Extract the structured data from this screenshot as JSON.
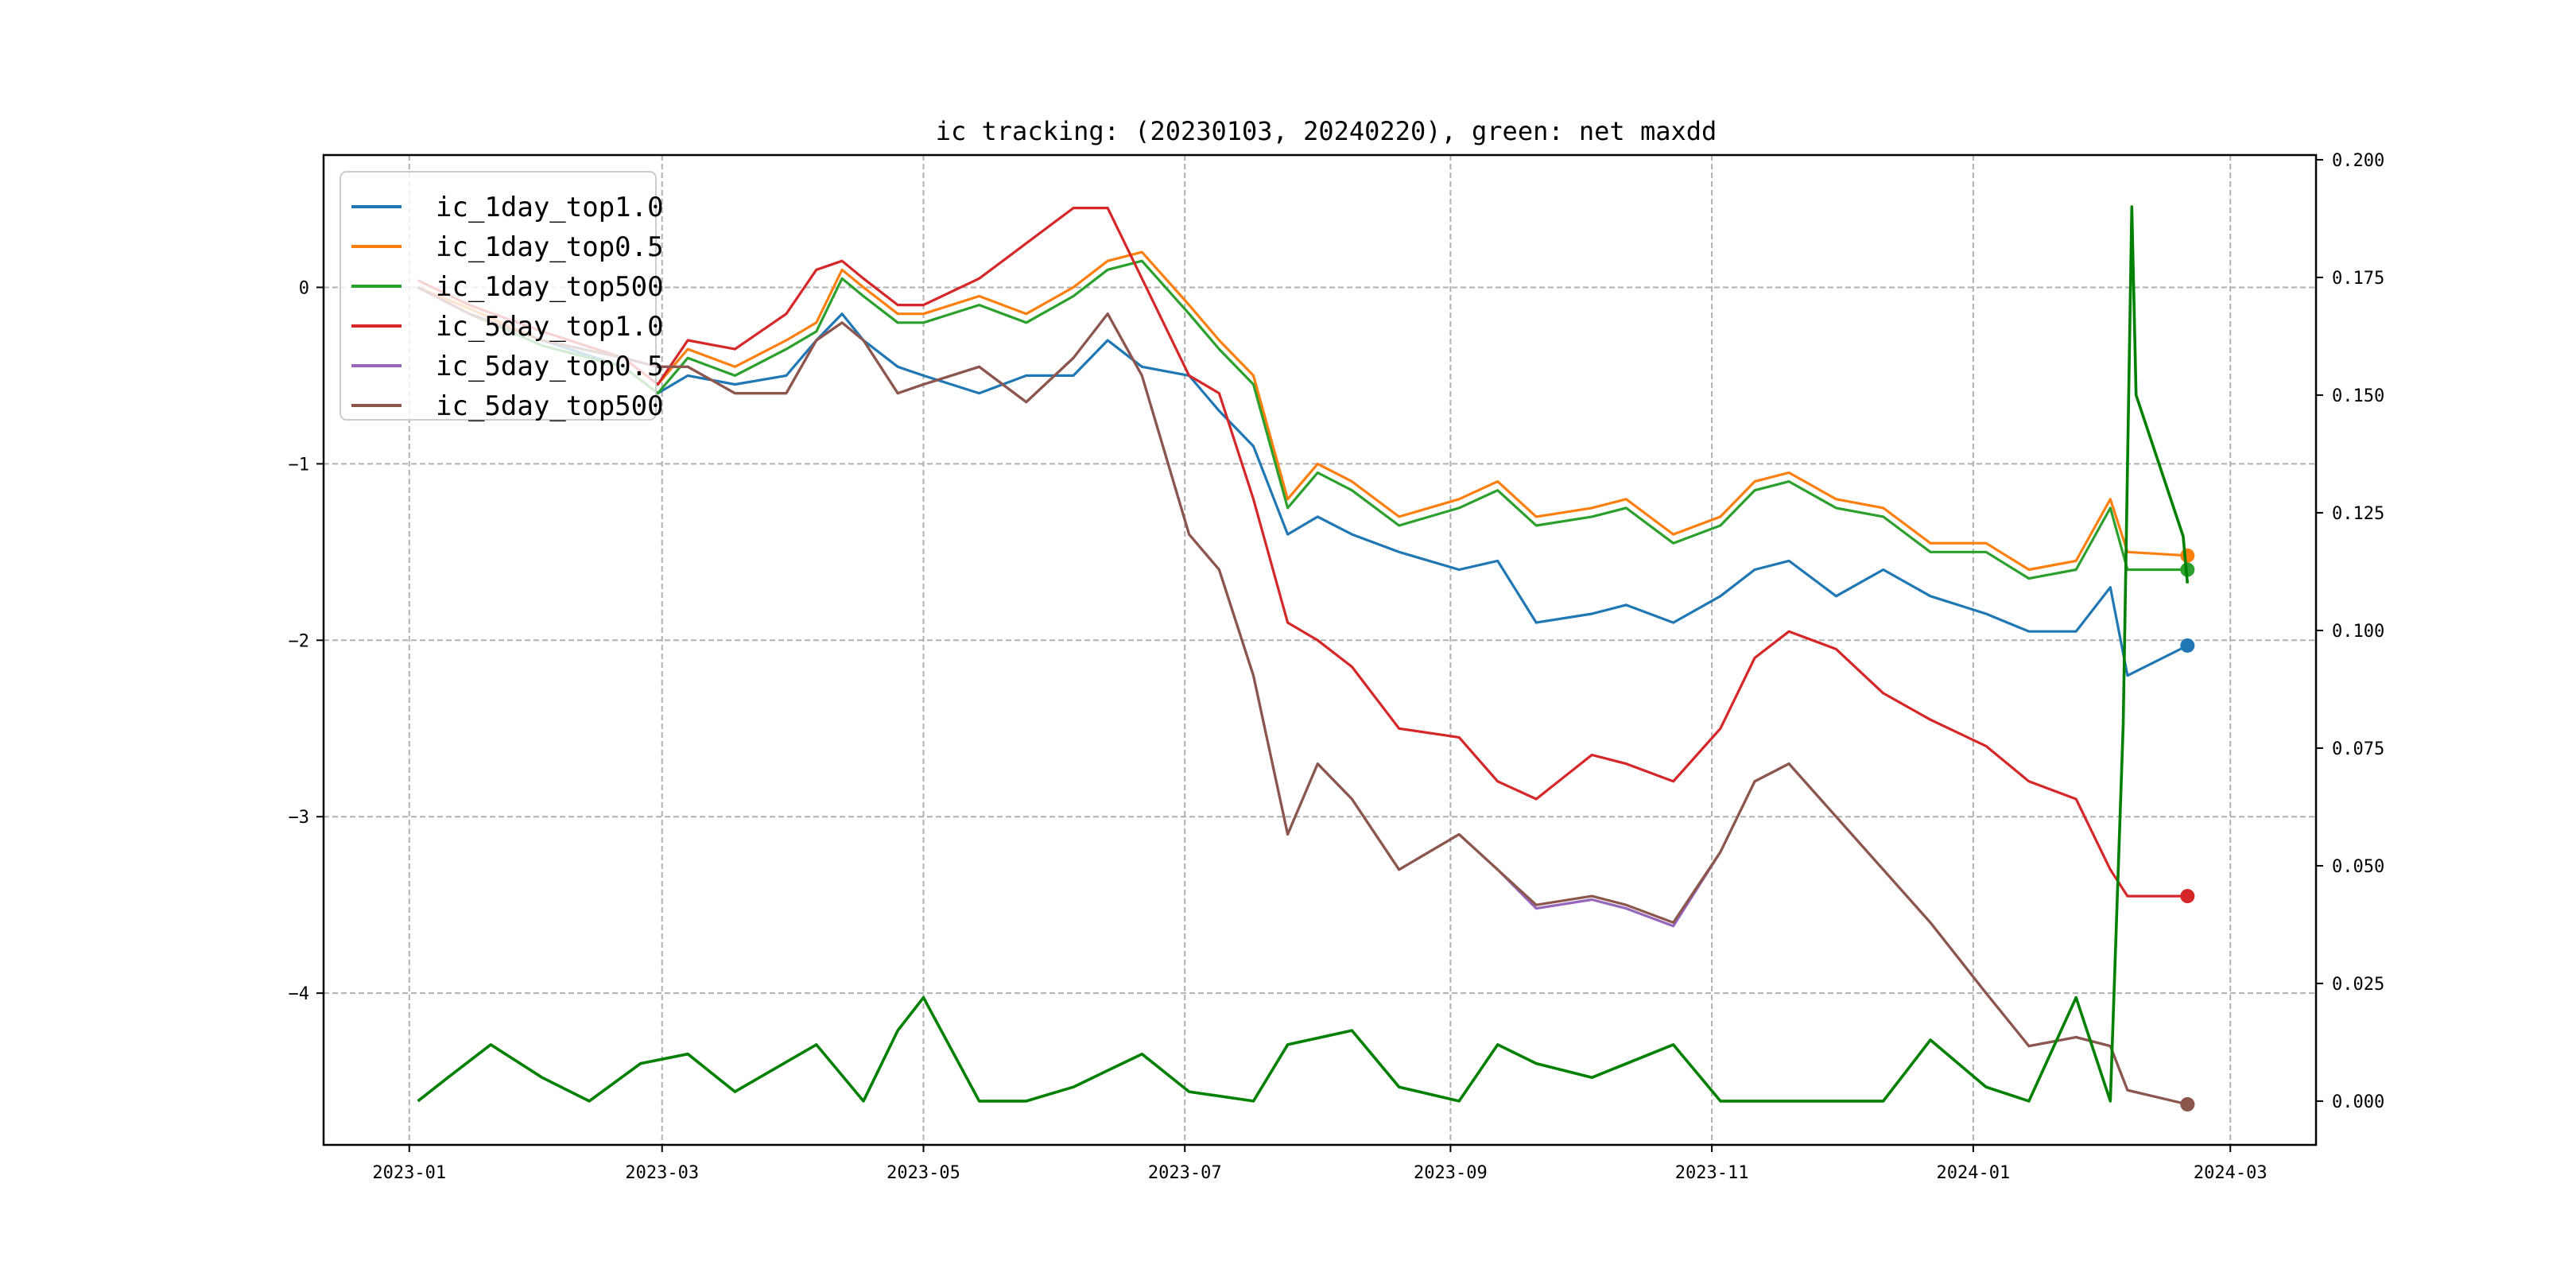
{
  "chart_data": {
    "type": "line",
    "title": "ic tracking: (20230103, 20240220), green: net maxdd",
    "xlabel": "",
    "ylabel": "",
    "xlim": [
      "2022-12-12",
      "2024-03-21"
    ],
    "ylim": [
      -4.86,
      0.75
    ],
    "ylim_right": [
      -0.0093,
      0.201
    ],
    "grid": true,
    "legend_position": "top-left",
    "x_ticks": [
      "2023-01",
      "2023-03",
      "2023-05",
      "2023-07",
      "2023-09",
      "2023-11",
      "2024-01",
      "2024-03"
    ],
    "y_ticks": [
      "-4",
      "-3",
      "-2",
      "-1",
      "0"
    ],
    "y_ticks_right": [
      "0.000",
      "0.025",
      "0.050",
      "0.075",
      "0.100",
      "0.125",
      "0.150",
      "0.175",
      "0.200"
    ],
    "x": [
      "2023-01-03",
      "2023-01-15",
      "2023-02-01",
      "2023-02-20",
      "2023-02-28",
      "2023-03-07",
      "2023-03-18",
      "2023-03-30",
      "2023-04-06",
      "2023-04-12",
      "2023-04-17",
      "2023-04-25",
      "2023-05-01",
      "2023-05-14",
      "2023-05-25",
      "2023-06-05",
      "2023-06-13",
      "2023-06-21",
      "2023-07-02",
      "2023-07-09",
      "2023-07-17",
      "2023-07-25",
      "2023-08-01",
      "2023-08-09",
      "2023-08-20",
      "2023-09-03",
      "2023-09-12",
      "2023-09-21",
      "2023-10-04",
      "2023-10-12",
      "2023-10-23",
      "2023-11-03",
      "2023-11-11",
      "2023-11-19",
      "2023-11-30",
      "2023-12-11",
      "2023-12-22",
      "2024-01-04",
      "2024-01-14",
      "2024-01-25",
      "2024-02-02",
      "2024-02-06",
      "2024-02-20"
    ],
    "series": [
      {
        "name": "ic_1day_top1.0",
        "color": "#1f77b4",
        "axis": "left",
        "values": [
          0.0,
          -0.15,
          -0.3,
          -0.45,
          -0.6,
          -0.5,
          -0.55,
          -0.5,
          -0.3,
          -0.15,
          -0.3,
          -0.45,
          -0.5,
          -0.6,
          -0.5,
          -0.5,
          -0.3,
          -0.45,
          -0.5,
          -0.7,
          -0.9,
          -1.4,
          -1.3,
          -1.4,
          -1.5,
          -1.6,
          -1.55,
          -1.9,
          -1.85,
          -1.8,
          -1.9,
          -1.75,
          -1.6,
          -1.55,
          -1.75,
          -1.6,
          -1.75,
          -1.85,
          -1.95,
          -1.95,
          -1.7,
          -2.2,
          -2.03
        ]
      },
      {
        "name": "ic_1day_top0.5",
        "color": "#ff7f0e",
        "axis": "left",
        "values": [
          0.0,
          -0.12,
          -0.3,
          -0.4,
          -0.55,
          -0.35,
          -0.45,
          -0.3,
          -0.2,
          0.1,
          0.0,
          -0.15,
          -0.15,
          -0.05,
          -0.15,
          0.0,
          0.15,
          0.2,
          -0.1,
          -0.3,
          -0.5,
          -1.2,
          -1.0,
          -1.1,
          -1.3,
          -1.2,
          -1.1,
          -1.3,
          -1.25,
          -1.2,
          -1.4,
          -1.3,
          -1.1,
          -1.05,
          -1.2,
          -1.25,
          -1.45,
          -1.45,
          -1.6,
          -1.55,
          -1.2,
          -1.5,
          -1.52
        ]
      },
      {
        "name": "ic_1day_top500",
        "color": "#2ca02c",
        "axis": "left",
        "values": [
          0.0,
          -0.15,
          -0.33,
          -0.45,
          -0.6,
          -0.4,
          -0.5,
          -0.35,
          -0.25,
          0.05,
          -0.05,
          -0.2,
          -0.2,
          -0.1,
          -0.2,
          -0.05,
          0.1,
          0.15,
          -0.15,
          -0.35,
          -0.55,
          -1.25,
          -1.05,
          -1.15,
          -1.35,
          -1.25,
          -1.15,
          -1.35,
          -1.3,
          -1.25,
          -1.45,
          -1.35,
          -1.15,
          -1.1,
          -1.25,
          -1.3,
          -1.5,
          -1.5,
          -1.65,
          -1.6,
          -1.25,
          -1.6,
          -1.6
        ]
      },
      {
        "name": "ic_5day_top1.0",
        "color": "#d62728",
        "axis": "left",
        "values": [
          0.04,
          -0.1,
          -0.25,
          -0.4,
          -0.55,
          -0.3,
          -0.35,
          -0.15,
          0.1,
          0.15,
          0.05,
          -0.1,
          -0.1,
          0.05,
          0.25,
          0.45,
          0.45,
          0.05,
          -0.5,
          -0.6,
          -1.2,
          -1.9,
          -2.0,
          -2.15,
          -2.5,
          -2.55,
          -2.8,
          -2.9,
          -2.65,
          -2.7,
          -2.8,
          -2.5,
          -2.1,
          -1.95,
          -2.05,
          -2.3,
          -2.45,
          -2.6,
          -2.8,
          -2.9,
          -3.3,
          -3.45,
          -3.45
        ]
      },
      {
        "name": "ic_5day_top0.5",
        "color": "#9467bd",
        "axis": "left",
        "values": [
          0.0,
          -0.15,
          -0.3,
          -0.4,
          -0.45,
          -0.45,
          -0.6,
          -0.6,
          -0.3,
          -0.2,
          -0.3,
          -0.6,
          -0.55,
          -0.45,
          -0.65,
          -0.4,
          -0.15,
          -0.5,
          -1.4,
          -1.6,
          -2.2,
          -3.1,
          -2.7,
          -2.9,
          -3.3,
          -3.1,
          -3.3,
          -3.52,
          -3.47,
          -3.52,
          -3.62,
          -3.2,
          -2.8,
          -2.7,
          -3.0,
          -3.3,
          -3.6,
          -4.0,
          -4.3,
          -4.25,
          -4.3,
          -4.55,
          -4.63
        ]
      },
      {
        "name": "ic_5day_top500",
        "color": "#8c564b",
        "axis": "left",
        "values": [
          0.0,
          -0.15,
          -0.3,
          -0.4,
          -0.45,
          -0.45,
          -0.6,
          -0.6,
          -0.3,
          -0.2,
          -0.3,
          -0.6,
          -0.55,
          -0.45,
          -0.65,
          -0.4,
          -0.15,
          -0.5,
          -1.4,
          -1.6,
          -2.2,
          -3.1,
          -2.7,
          -2.9,
          -3.3,
          -3.1,
          -3.3,
          -3.5,
          -3.45,
          -3.5,
          -3.6,
          -3.2,
          -2.8,
          -2.7,
          -3.0,
          -3.3,
          -3.6,
          -4.0,
          -4.3,
          -4.25,
          -4.3,
          -4.55,
          -4.63
        ]
      }
    ],
    "maxdd": {
      "name": "net maxdd",
      "color": "#008000",
      "axis": "right",
      "x": [
        "2023-01-03",
        "2023-01-10",
        "2023-01-20",
        "2023-02-01",
        "2023-02-12",
        "2023-02-24",
        "2023-03-07",
        "2023-03-18",
        "2023-04-06",
        "2023-04-17",
        "2023-04-25",
        "2023-05-01",
        "2023-05-14",
        "2023-05-25",
        "2023-06-05",
        "2023-06-21",
        "2023-07-02",
        "2023-07-17",
        "2023-07-25",
        "2023-08-09",
        "2023-08-20",
        "2023-09-03",
        "2023-09-12",
        "2023-09-21",
        "2023-10-04",
        "2023-10-23",
        "2023-11-03",
        "2023-11-19",
        "2023-12-11",
        "2023-12-22",
        "2024-01-04",
        "2024-01-14",
        "2024-01-25",
        "2024-02-02",
        "2024-02-05",
        "2024-02-07",
        "2024-02-08",
        "2024-02-19",
        "2024-02-20"
      ],
      "values": [
        0.0,
        0.005,
        0.012,
        0.005,
        0.0,
        0.008,
        0.01,
        0.002,
        0.012,
        0.0,
        0.015,
        0.022,
        0.0,
        0.0,
        0.003,
        0.01,
        0.002,
        0.0,
        0.012,
        0.015,
        0.003,
        0.0,
        0.012,
        0.008,
        0.005,
        0.012,
        0.0,
        0.0,
        0.0,
        0.013,
        0.003,
        0.0,
        0.022,
        0.0,
        0.08,
        0.19,
        0.15,
        0.12,
        0.11
      ]
    }
  }
}
